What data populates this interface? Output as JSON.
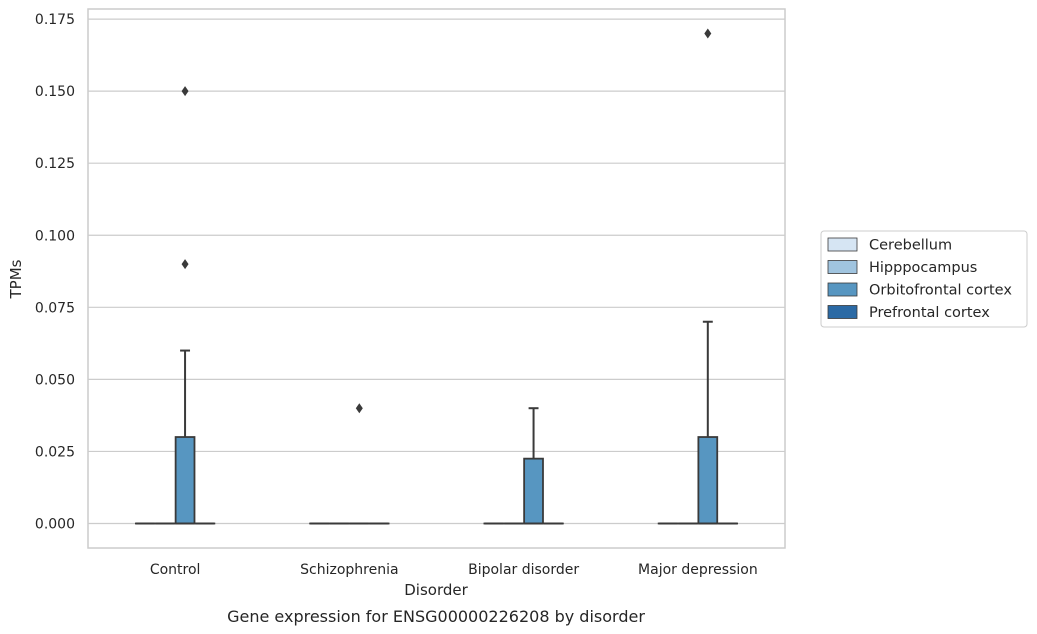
{
  "chart_data": {
    "type": "box",
    "title": "",
    "caption": "Gene expression for ENSG00000226208 by disorder",
    "xlabel": "Disorder",
    "ylabel": "TPMs",
    "ylim": [
      -0.0085,
      0.1785
    ],
    "yticks": [
      0.0,
      0.025,
      0.05,
      0.075,
      0.1,
      0.125,
      0.15,
      0.175
    ],
    "ytick_labels": [
      "0.000",
      "0.025",
      "0.050",
      "0.075",
      "0.100",
      "0.125",
      "0.150",
      "0.175"
    ],
    "categories": [
      "Control",
      "Schizophrenia",
      "Bipolar disorder",
      "Major depression"
    ],
    "grid": "horizontal",
    "legend_position": "center-right outside",
    "series": [
      {
        "name": "Cerebellum",
        "color": "#d6e5f3",
        "boxes": [
          {
            "q1": 0,
            "median": 0,
            "q3": 0,
            "whisker_low": 0,
            "whisker_high": 0,
            "outliers": []
          },
          {
            "q1": 0,
            "median": 0,
            "q3": 0,
            "whisker_low": 0,
            "whisker_high": 0,
            "outliers": []
          },
          {
            "q1": 0,
            "median": 0,
            "q3": 0,
            "whisker_low": 0,
            "whisker_high": 0,
            "outliers": []
          },
          {
            "q1": 0,
            "median": 0,
            "q3": 0,
            "whisker_low": 0,
            "whisker_high": 0,
            "outliers": []
          }
        ]
      },
      {
        "name": "Hipppocampus",
        "color": "#a0c4df",
        "boxes": [
          {
            "q1": 0,
            "median": 0,
            "q3": 0,
            "whisker_low": 0,
            "whisker_high": 0,
            "outliers": []
          },
          {
            "q1": 0,
            "median": 0,
            "q3": 0,
            "whisker_low": 0,
            "whisker_high": 0,
            "outliers": []
          },
          {
            "q1": 0,
            "median": 0,
            "q3": 0,
            "whisker_low": 0,
            "whisker_high": 0,
            "outliers": []
          },
          {
            "q1": 0,
            "median": 0,
            "q3": 0,
            "whisker_low": 0,
            "whisker_high": 0,
            "outliers": []
          }
        ]
      },
      {
        "name": "Orbitofrontal cortex",
        "color": "#5796c1",
        "boxes": [
          {
            "q1": 0,
            "median": 0,
            "q3": 0.03,
            "whisker_low": 0,
            "whisker_high": 0.06,
            "outliers": [
              0.09,
              0.15
            ]
          },
          {
            "q1": 0,
            "median": 0,
            "q3": 0,
            "whisker_low": 0,
            "whisker_high": 0,
            "outliers": [
              0.04
            ]
          },
          {
            "q1": 0,
            "median": 0,
            "q3": 0.0225,
            "whisker_low": 0,
            "whisker_high": 0.04,
            "outliers": []
          },
          {
            "q1": 0,
            "median": 0,
            "q3": 0.03,
            "whisker_low": 0,
            "whisker_high": 0.07,
            "outliers": [
              0.17
            ]
          }
        ]
      },
      {
        "name": "Prefrontal cortex",
        "color": "#2b6aa5",
        "boxes": [
          {
            "q1": 0,
            "median": 0,
            "q3": 0,
            "whisker_low": 0,
            "whisker_high": 0,
            "outliers": []
          },
          {
            "q1": 0,
            "median": 0,
            "q3": 0,
            "whisker_low": 0,
            "whisker_high": 0,
            "outliers": []
          },
          {
            "q1": 0,
            "median": 0,
            "q3": 0,
            "whisker_low": 0,
            "whisker_high": 0,
            "outliers": []
          },
          {
            "q1": 0,
            "median": 0,
            "q3": 0,
            "whisker_low": 0,
            "whisker_high": 0,
            "outliers": []
          }
        ]
      }
    ]
  }
}
